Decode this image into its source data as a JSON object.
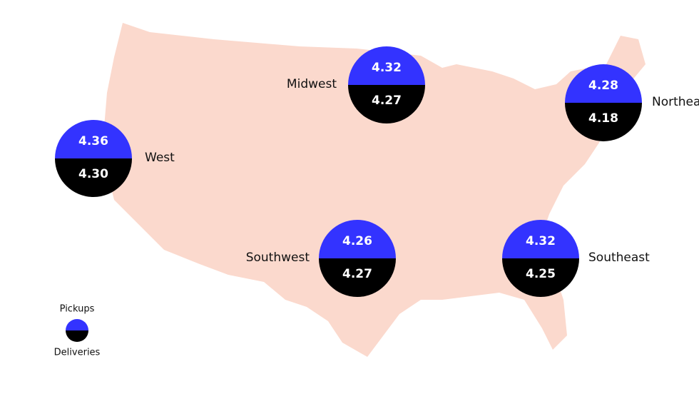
{
  "regions": [
    {
      "name": "West",
      "pickups": "4.36",
      "deliveries": "4.30"
    },
    {
      "name": "Midwest",
      "pickups": "4.32",
      "deliveries": "4.27"
    },
    {
      "name": "Northeast",
      "pickups": "4.28",
      "deliveries": "4.18"
    },
    {
      "name": "Southwest",
      "pickups": "4.26",
      "deliveries": "4.27"
    },
    {
      "name": "Southeast",
      "pickups": "4.32",
      "deliveries": "4.25"
    }
  ],
  "legend": {
    "top": "Pickups",
    "bottom": "Deliveries"
  }
}
